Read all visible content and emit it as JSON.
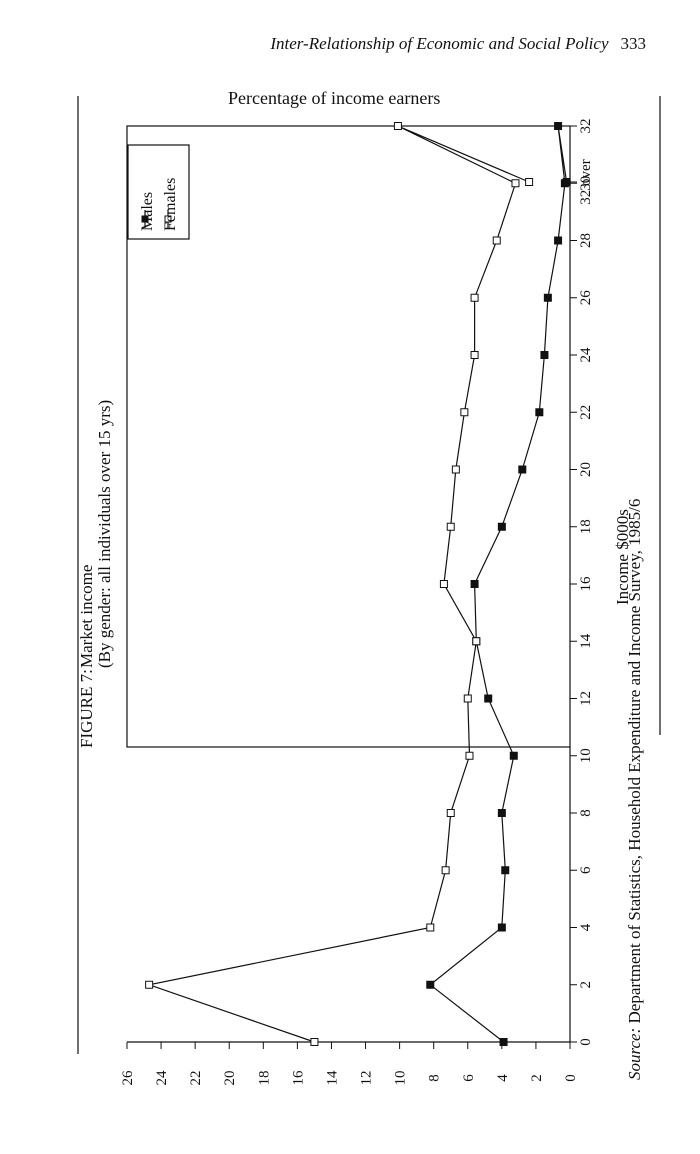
{
  "page": {
    "running_head": "Inter-Relationship of Economic and Social Policy",
    "page_number": "333"
  },
  "figure": {
    "label": "FIGURE 7:",
    "title": "Market income",
    "subtitle": "(By gender: all individuals over 15 yrs)",
    "source_prefix": "Source:",
    "source_text": " Department of Statistics, Household Expenditure and Income Survey, 1985/6"
  },
  "chart_data": {
    "type": "line",
    "ylabel": "Percentage of income earners",
    "xlabel": "Income $000s",
    "x_tick_labels": [
      "0",
      "2",
      "4",
      "6",
      "8",
      "10",
      "12",
      "14",
      "16",
      "18",
      "20",
      "22",
      "24",
      "26",
      "28",
      "30",
      "32",
      "32 over"
    ],
    "y_ticks": [
      0,
      2,
      4,
      6,
      8,
      10,
      12,
      14,
      16,
      18,
      20,
      22,
      24,
      26
    ],
    "ylim": [
      0,
      26
    ],
    "legend_position": "top-right",
    "series": [
      {
        "name": "Males",
        "marker": "filled-square",
        "values": [
          3.9,
          8.2,
          4.0,
          3.8,
          4.0,
          3.3,
          4.8,
          5.5,
          5.6,
          4.0,
          2.8,
          1.8,
          1.5,
          1.3,
          0.7,
          0.3,
          0.7,
          0.2
        ]
      },
      {
        "name": "Females",
        "marker": "open-square",
        "values": [
          15.0,
          24.7,
          8.2,
          7.3,
          7.0,
          5.9,
          6.0,
          5.5,
          7.4,
          7.0,
          6.7,
          6.2,
          5.6,
          5.6,
          4.3,
          3.2,
          10.1,
          2.4
        ]
      }
    ]
  }
}
